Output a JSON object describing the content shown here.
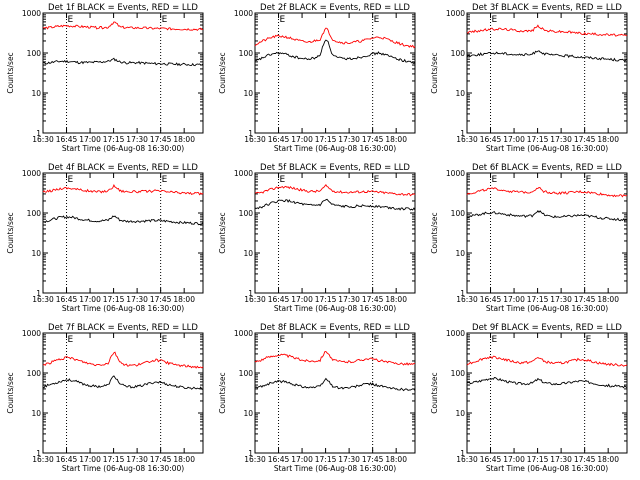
{
  "chart_data": {
    "type": "line",
    "panels": [
      {
        "title": "Det 1f BLACK = Events, RED = LLD",
        "series": [
          {
            "color": "#000000",
            "values": [
              55,
              57,
              60,
              62,
              62,
              60,
              58,
              58,
              58,
              59,
              60,
              62,
              70,
              60,
              57,
              57,
              57,
              56,
              55,
              54,
              54,
              53,
              53,
              52,
              52,
              51,
              51,
              51
            ]
          },
          {
            "color": "#ff0000",
            "values": [
              420,
              430,
              450,
              470,
              480,
              470,
              460,
              450,
              440,
              430,
              430,
              440,
              600,
              440,
              430,
              425,
              425,
              420,
              415,
              410,
              410,
              405,
              400,
              400,
              395,
              395,
              390,
              390
            ]
          }
        ]
      },
      {
        "title": "Det 2f BLACK = Events, RED = LLD",
        "series": [
          {
            "color": "#000000",
            "values": [
              60,
              72,
              85,
              95,
              100,
              95,
              85,
              78,
              72,
              70,
              75,
              85,
              230,
              90,
              75,
              72,
              72,
              75,
              80,
              88,
              95,
              100,
              90,
              80,
              72,
              65,
              60,
              58
            ]
          },
          {
            "color": "#ff0000",
            "values": [
              160,
              190,
              220,
              250,
              265,
              255,
              235,
              210,
              195,
              185,
              200,
              220,
              420,
              225,
              190,
              180,
              180,
              190,
              200,
              220,
              240,
              250,
              230,
              200,
              180,
              160,
              150,
              145
            ]
          }
        ]
      },
      {
        "title": "Det 3f BLACK = Events, RED = LLD",
        "series": [
          {
            "color": "#000000",
            "values": [
              85,
              88,
              92,
              95,
              98,
              100,
              98,
              95,
              92,
              90,
              90,
              92,
              118,
              95,
              90,
              88,
              86,
              84,
              82,
              80,
              78,
              76,
              74,
              72,
              70,
              68,
              66,
              65
            ]
          },
          {
            "color": "#ff0000",
            "values": [
              330,
              340,
              360,
              375,
              390,
              400,
              395,
              385,
              370,
              360,
              355,
              360,
              480,
              370,
              355,
              345,
              340,
              335,
              325,
              315,
              305,
              300,
              295,
              290,
              285,
              280,
              275,
              270
            ]
          }
        ]
      },
      {
        "title": "Det 4f BLACK = Events, RED = LLD",
        "series": [
          {
            "color": "#000000",
            "values": [
              60,
              65,
              72,
              78,
              80,
              78,
              72,
              68,
              65,
              63,
              64,
              66,
              85,
              66,
              62,
              62,
              62,
              63,
              64,
              65,
              64,
              62,
              60,
              58,
              57,
              56,
              55,
              55
            ]
          },
          {
            "color": "#ff0000",
            "values": [
              330,
              350,
              380,
              410,
              420,
              410,
              385,
              365,
              350,
              340,
              345,
              355,
              480,
              360,
              345,
              340,
              340,
              345,
              350,
              355,
              350,
              340,
              330,
              320,
              315,
              310,
              305,
              305
            ]
          }
        ]
      },
      {
        "title": "Det 5f BLACK = Events, RED = LLD",
        "series": [
          {
            "color": "#000000",
            "values": [
              130,
              140,
              160,
              180,
              200,
              205,
              195,
              180,
              165,
              155,
              155,
              160,
              220,
              160,
              150,
              145,
              145,
              148,
              150,
              152,
              150,
              145,
              140,
              135,
              130,
              128,
              126,
              125
            ]
          },
          {
            "color": "#ff0000",
            "values": [
              300,
              320,
              360,
              400,
              440,
              450,
              430,
              400,
              370,
              350,
              345,
              355,
              480,
              360,
              340,
              330,
              330,
              335,
              340,
              345,
              340,
              330,
              320,
              310,
              300,
              295,
              290,
              285
            ]
          }
        ]
      },
      {
        "title": "Det 6f BLACK = Events, RED = LLD",
        "series": [
          {
            "color": "#000000",
            "values": [
              80,
              85,
              92,
              98,
              102,
              100,
              95,
              90,
              86,
              84,
              84,
              86,
              115,
              90,
              82,
              80,
              80,
              82,
              85,
              88,
              86,
              82,
              78,
              74,
              72,
              70,
              68,
              68
            ]
          },
          {
            "color": "#ff0000",
            "values": [
              300,
              320,
              350,
              380,
              400,
              395,
              375,
              355,
              340,
              330,
              330,
              340,
              440,
              345,
              325,
              315,
              315,
              320,
              330,
              340,
              335,
              320,
              305,
              290,
              280,
              275,
              270,
              268
            ]
          }
        ]
      },
      {
        "title": "Det 7f BLACK = Events, RED = LLD",
        "series": [
          {
            "color": "#000000",
            "values": [
              45,
              50,
              56,
              62,
              68,
              65,
              58,
              52,
              48,
              46,
              47,
              50,
              85,
              52,
              46,
              45,
              46,
              50,
              55,
              60,
              58,
              52,
              48,
              45,
              43,
              42,
              42,
              41
            ]
          },
          {
            "color": "#ff0000",
            "values": [
              160,
              175,
              200,
              225,
              240,
              230,
              205,
              185,
              170,
              160,
              165,
              175,
              340,
              180,
              160,
              155,
              160,
              175,
              195,
              210,
              200,
              180,
              165,
              155,
              150,
              145,
              142,
              140
            ]
          }
        ]
      },
      {
        "title": "Det 8f BLACK = Events, RED = LLD",
        "series": [
          {
            "color": "#000000",
            "values": [
              42,
              46,
              52,
              58,
              62,
              60,
              55,
              50,
              46,
              44,
              44,
              46,
              72,
              48,
              43,
              42,
              43,
              46,
              50,
              54,
              52,
              48,
              44,
              41,
              40,
              39,
              38,
              38
            ]
          },
          {
            "color": "#ff0000",
            "values": [
              190,
              210,
              240,
              265,
              285,
              280,
              255,
              230,
              210,
              200,
              200,
              210,
              360,
              215,
              195,
              190,
              190,
              200,
              215,
              230,
              220,
              205,
              190,
              180,
              175,
              170,
              168,
              165
            ]
          }
        ]
      },
      {
        "title": "Det 9f BLACK = Events, RED = LLD",
        "series": [
          {
            "color": "#000000",
            "values": [
              55,
              58,
              62,
              68,
              74,
              72,
              66,
              60,
              56,
              54,
              54,
              56,
              70,
              58,
              54,
              53,
              54,
              57,
              60,
              63,
              61,
              57,
              53,
              50,
              48,
              47,
              46,
              45
            ]
          },
          {
            "color": "#ff0000",
            "values": [
              170,
              185,
              210,
              235,
              250,
              245,
              225,
              205,
              190,
              180,
              182,
              190,
              250,
              195,
              180,
              175,
              178,
              190,
              205,
              220,
              212,
              195,
              180,
              170,
              165,
              160,
              158,
              155
            ]
          }
        ]
      }
    ],
    "xticks": [
      "16:30",
      "16:45",
      "17:00",
      "17:15",
      "17:30",
      "17:45",
      "18:00"
    ],
    "x_range": [
      "16:30",
      "18:12"
    ],
    "xlabel": "Start Time (06-Aug-08 16:30:00)",
    "ylabel": "Counts/sec",
    "y_scale": "log",
    "ylim": [
      1,
      1000
    ],
    "yticks": [
      "1",
      "10",
      "100",
      "1000"
    ],
    "vlines": [
      "16:45",
      "17:45"
    ],
    "vline_flags": [
      "E",
      "E"
    ]
  }
}
